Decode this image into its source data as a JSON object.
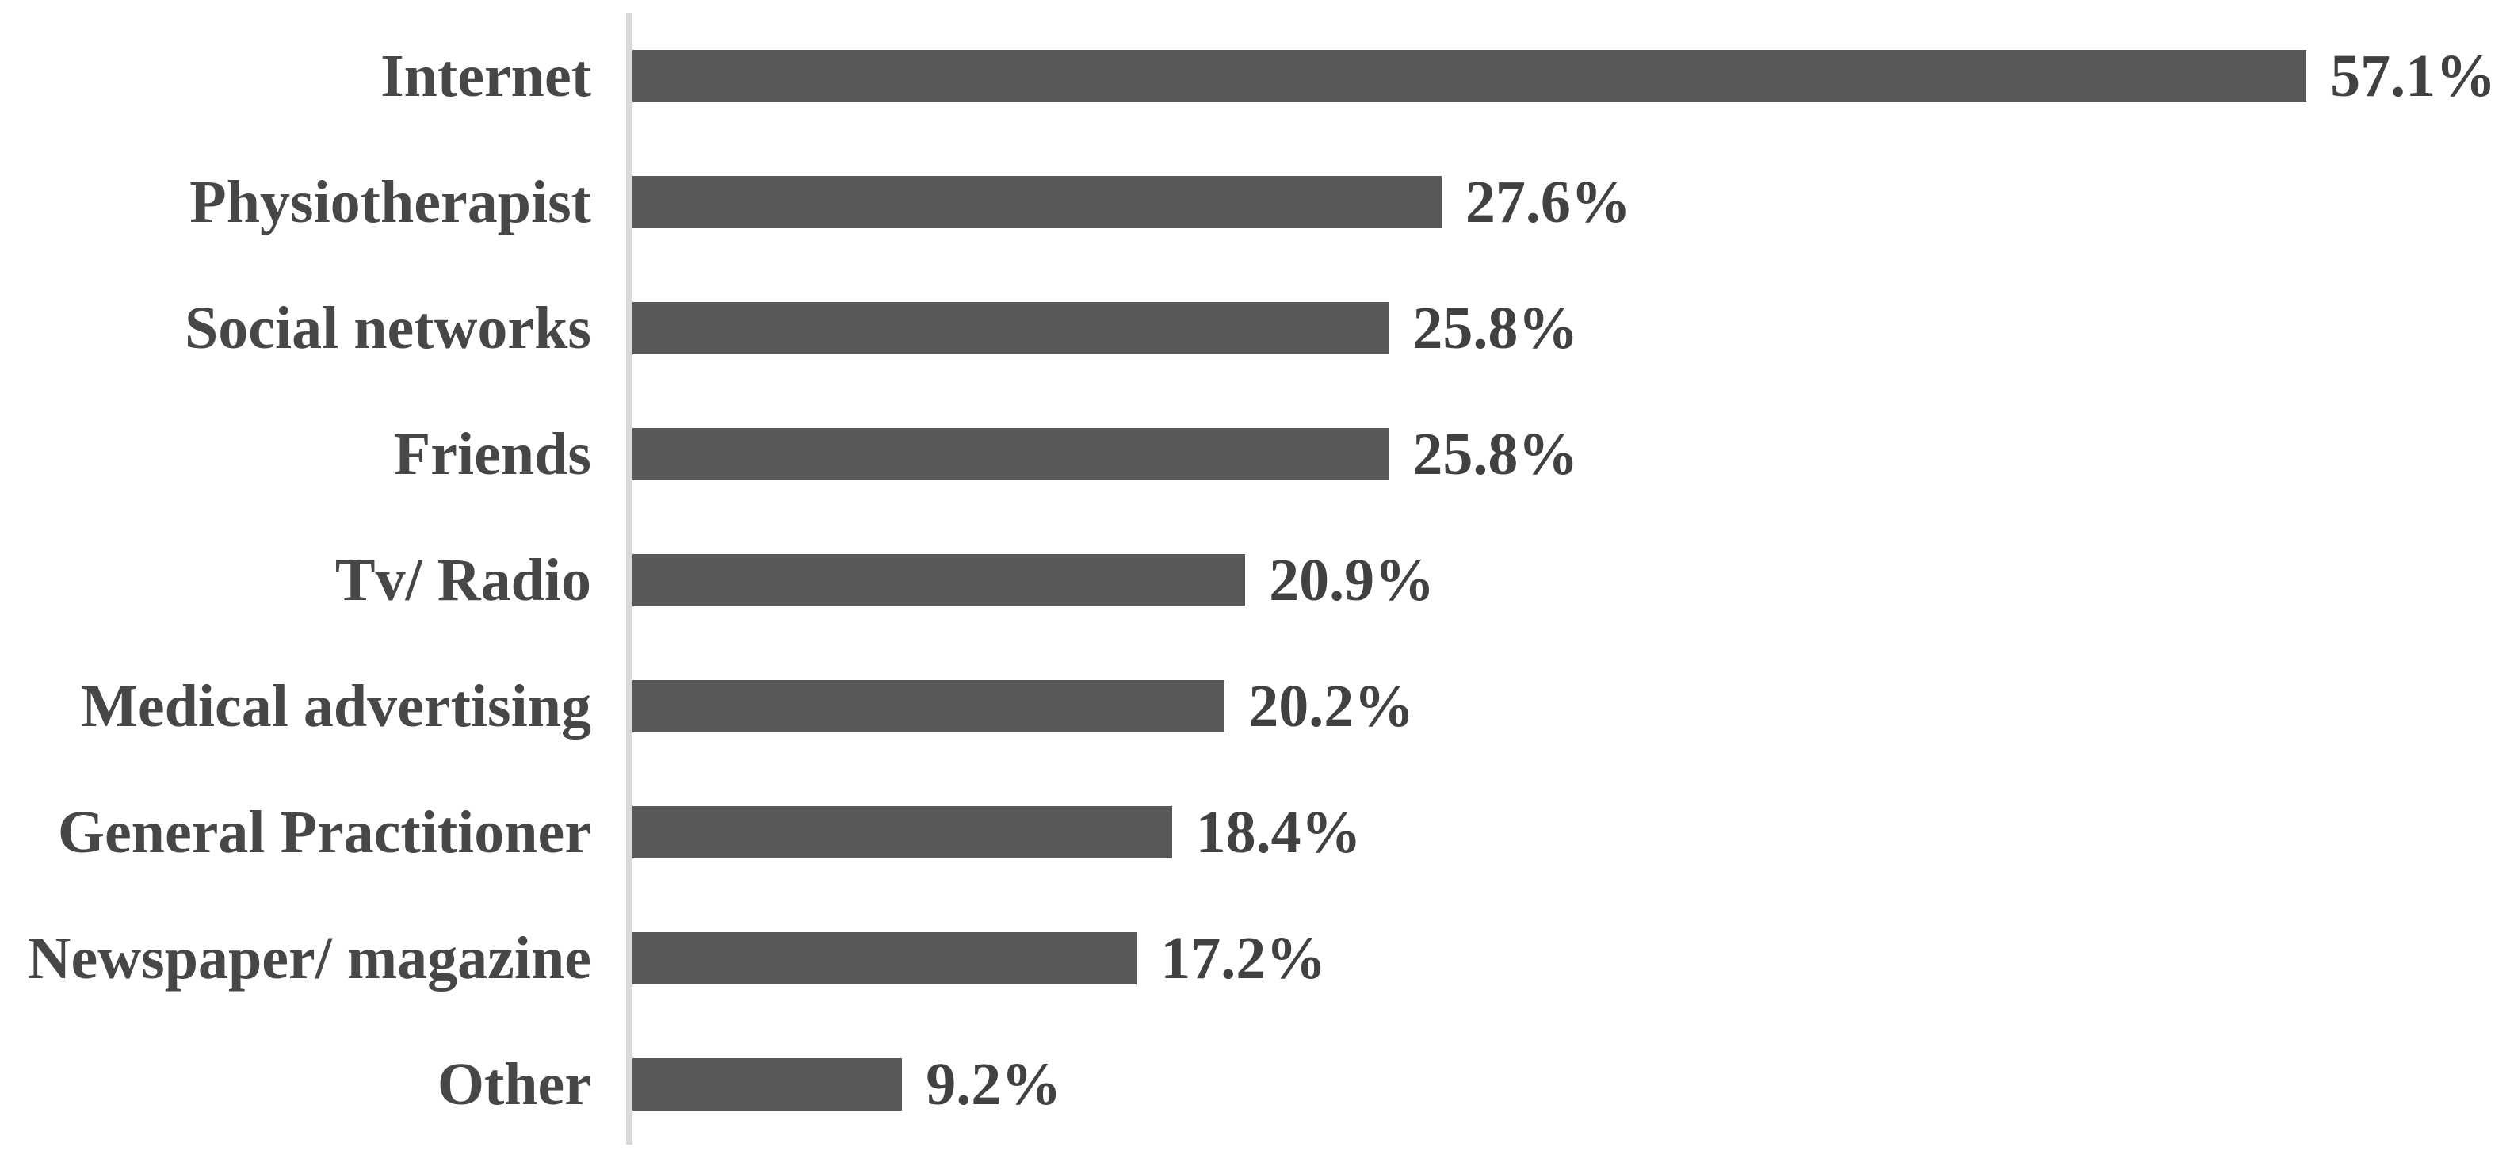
{
  "chart_data": {
    "type": "bar",
    "orientation": "horizontal",
    "title": "",
    "xlabel": "",
    "ylabel": "",
    "categories": [
      "Internet",
      "Physiotherapist",
      "Social networks",
      "Friends",
      "Tv/ Radio",
      "Medical advertising",
      "General Practitioner",
      "Newspaper/ magazine",
      "Other"
    ],
    "values": [
      57.1,
      27.6,
      25.8,
      25.8,
      20.9,
      20.2,
      18.4,
      17.2,
      9.2
    ],
    "value_labels": [
      "57.1%",
      "27.6%",
      "25.8%",
      "25.8%",
      "20.9%",
      "20.2%",
      "18.4%",
      "17.2%",
      "9.2%"
    ],
    "grid": false,
    "legend": false,
    "data_label_position": "outside-end",
    "colors": {
      "bar": "#595959",
      "category_label_text": "#474747",
      "value_label_text": "#414141",
      "axis_line": "#d9d9d9",
      "background": "#ffffff"
    }
  }
}
